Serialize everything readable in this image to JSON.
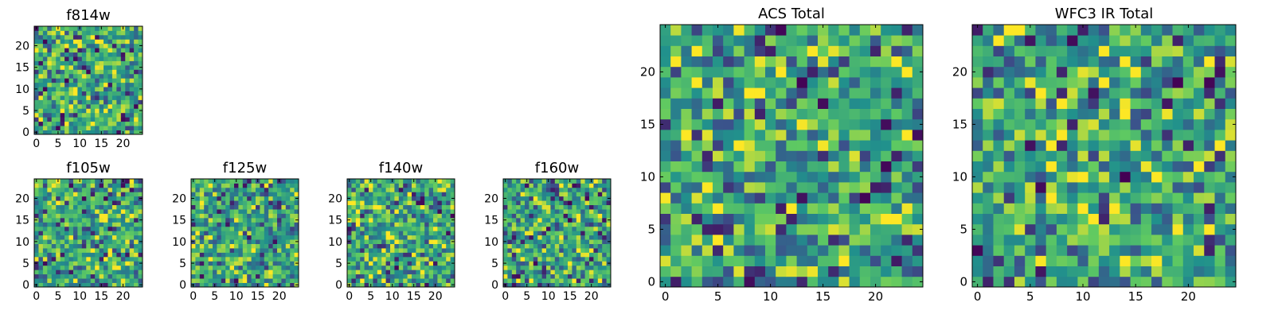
{
  "chart_data": [
    {
      "id": "f814w",
      "type": "heatmap",
      "title": "f814w",
      "grid_size": 25,
      "xlim": [
        0,
        24
      ],
      "ylim": [
        0,
        24
      ],
      "xticks": [
        0,
        5,
        10,
        15,
        20
      ],
      "yticks": [
        0,
        5,
        10,
        15,
        20
      ],
      "colormap": "viridis",
      "seed": 11
    },
    {
      "id": "f105w",
      "type": "heatmap",
      "title": "f105w",
      "grid_size": 25,
      "xlim": [
        0,
        24
      ],
      "ylim": [
        0,
        24
      ],
      "xticks": [
        0,
        5,
        10,
        15,
        20
      ],
      "yticks": [
        0,
        5,
        10,
        15,
        20
      ],
      "colormap": "viridis",
      "seed": 23
    },
    {
      "id": "f125w",
      "type": "heatmap",
      "title": "f125w",
      "grid_size": 25,
      "xlim": [
        0,
        24
      ],
      "ylim": [
        0,
        24
      ],
      "xticks": [
        0,
        5,
        10,
        15,
        20
      ],
      "yticks": [
        0,
        5,
        10,
        15,
        20
      ],
      "colormap": "viridis",
      "seed": 37
    },
    {
      "id": "f140w",
      "type": "heatmap",
      "title": "f140w",
      "grid_size": 25,
      "xlim": [
        0,
        24
      ],
      "ylim": [
        0,
        24
      ],
      "xticks": [
        0,
        5,
        10,
        15,
        20
      ],
      "yticks": [
        0,
        5,
        10,
        15,
        20
      ],
      "colormap": "viridis",
      "seed": 41
    },
    {
      "id": "f160w",
      "type": "heatmap",
      "title": "f160w",
      "grid_size": 25,
      "xlim": [
        0,
        24
      ],
      "ylim": [
        0,
        24
      ],
      "xticks": [
        0,
        5,
        10,
        15,
        20
      ],
      "yticks": [
        0,
        5,
        10,
        15,
        20
      ],
      "colormap": "viridis",
      "seed": 53
    },
    {
      "id": "acs-total",
      "type": "heatmap",
      "title": "ACS Total",
      "grid_size": 25,
      "xlim": [
        0,
        24
      ],
      "ylim": [
        0,
        24
      ],
      "xticks": [
        0,
        5,
        10,
        15,
        20
      ],
      "yticks": [
        0,
        5,
        10,
        15,
        20
      ],
      "colormap": "viridis",
      "seed": 67
    },
    {
      "id": "wfc3-ir-total",
      "type": "heatmap",
      "title": "WFC3 IR Total",
      "grid_size": 25,
      "xlim": [
        0,
        24
      ],
      "ylim": [
        0,
        24
      ],
      "xticks": [
        0,
        5,
        10,
        15,
        20
      ],
      "yticks": [
        0,
        5,
        10,
        15,
        20
      ],
      "colormap": "viridis",
      "seed": 79
    }
  ],
  "colors": {
    "background": "#ffffff",
    "axis": "#000000",
    "viridis_stops": [
      "#440154",
      "#3b528b",
      "#21918c",
      "#5ec962",
      "#fde725"
    ]
  }
}
